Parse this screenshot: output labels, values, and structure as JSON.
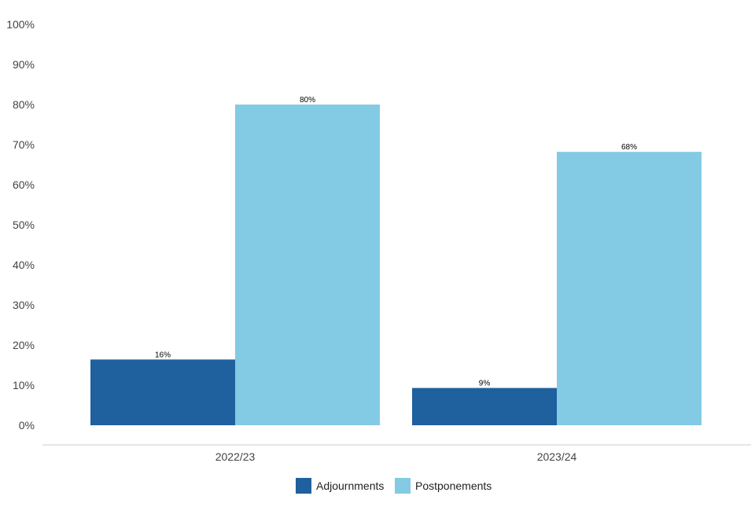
{
  "chart_data": {
    "type": "bar",
    "title": "",
    "xlabel": "",
    "ylabel": "",
    "categories": [
      "2022/23",
      "2023/24"
    ],
    "series": [
      {
        "name": "Adjournments",
        "values": [
          16.4,
          9.3
        ],
        "labels": [
          "16%",
          "9%"
        ],
        "color": "#1f609e"
      },
      {
        "name": "Postponements",
        "values": [
          80,
          68.2
        ],
        "labels": [
          "80%",
          "68%"
        ],
        "color": "#83cae4"
      }
    ],
    "ylim": [
      0,
      100
    ],
    "yticks": [
      0,
      10,
      20,
      30,
      40,
      50,
      60,
      70,
      80,
      90,
      100
    ],
    "ytick_labels": [
      "0%",
      "10%",
      "20%",
      "30%",
      "40%",
      "50%",
      "60%",
      "70%",
      "80%",
      "90%",
      "100%"
    ],
    "grid": false,
    "legend_position": "bottom-center",
    "axis_color": "#cccccc",
    "tick_text_color": "#444444"
  }
}
